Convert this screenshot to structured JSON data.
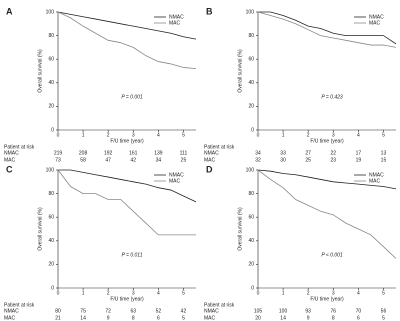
{
  "chart_data": [
    {
      "type": "line",
      "panel_label": "A",
      "ylabel": "Overall survival (%)",
      "xlabel": "F/U time (year)",
      "annotation": "P = 0.001",
      "x": [
        0,
        0.5,
        1,
        1.5,
        2,
        2.5,
        3,
        3.5,
        4,
        4.5,
        5,
        5.5
      ],
      "series": [
        {
          "name": "NMAC",
          "color": "#222222",
          "values": [
            100,
            98,
            96,
            94,
            92,
            90,
            88,
            86,
            84,
            82,
            79,
            77
          ]
        },
        {
          "name": "MAC",
          "color": "#888888",
          "values": [
            100,
            95,
            88,
            82,
            76,
            74,
            70,
            63,
            58,
            56,
            53,
            52
          ]
        }
      ],
      "xlim": [
        0,
        5.5
      ],
      "ylim": [
        0,
        100
      ],
      "xticks": [
        0,
        1,
        2,
        3,
        4,
        5
      ],
      "yticks": [
        0,
        20,
        40,
        60,
        80,
        100
      ],
      "risk_table": {
        "title": "Patient at risk",
        "rows": [
          {
            "name": "NMAC",
            "values": [
              219,
              208,
              192,
              161,
              139,
              111
            ]
          },
          {
            "name": "MAC",
            "values": [
              73,
              58,
              47,
              42,
              34,
              25
            ]
          }
        ]
      }
    },
    {
      "type": "line",
      "panel_label": "B",
      "ylabel": "Overall survival (%)",
      "xlabel": "F/U time (year)",
      "annotation": "P = 0.423",
      "x": [
        0,
        0.5,
        1,
        1.5,
        2,
        2.5,
        3,
        3.5,
        4,
        4.5,
        5,
        5.5
      ],
      "series": [
        {
          "name": "NMAC",
          "color": "#222222",
          "values": [
            100,
            100,
            97,
            93,
            88,
            86,
            82,
            80,
            80,
            80,
            80,
            73
          ]
        },
        {
          "name": "MAC",
          "color": "#888888",
          "values": [
            100,
            97,
            94,
            90,
            85,
            80,
            78,
            76,
            74,
            72,
            72,
            70
          ]
        }
      ],
      "xlim": [
        0,
        5.5
      ],
      "ylim": [
        0,
        100
      ],
      "xticks": [
        0,
        1,
        2,
        3,
        4,
        5
      ],
      "yticks": [
        0,
        20,
        40,
        60,
        80,
        100
      ],
      "risk_table": {
        "title": "Patient at risk",
        "rows": [
          {
            "name": "NMAC",
            "values": [
              34,
              33,
              27,
              22,
              17,
              13
            ]
          },
          {
            "name": "MAC",
            "values": [
              32,
              30,
              25,
              23,
              19,
              15
            ]
          }
        ]
      }
    },
    {
      "type": "line",
      "panel_label": "C",
      "ylabel": "Overall survival (%)",
      "xlabel": "F/U time (year)",
      "annotation": "P = 0.011",
      "x": [
        0,
        0.5,
        1,
        1.5,
        2,
        2.5,
        3,
        3.5,
        4,
        4.5,
        5,
        5.5
      ],
      "series": [
        {
          "name": "NMAC",
          "color": "#222222",
          "values": [
            100,
            100,
            98,
            96,
            94,
            92,
            90,
            88,
            85,
            83,
            78,
            73
          ]
        },
        {
          "name": "MAC",
          "color": "#888888",
          "values": [
            100,
            86,
            80,
            80,
            75,
            75,
            65,
            55,
            45,
            45,
            45,
            45
          ]
        }
      ],
      "xlim": [
        0,
        5.5
      ],
      "ylim": [
        0,
        100
      ],
      "xticks": [
        0,
        1,
        2,
        3,
        4,
        5
      ],
      "yticks": [
        0,
        20,
        40,
        60,
        80,
        100
      ],
      "risk_table": {
        "title": "Patient at risk",
        "rows": [
          {
            "name": "NMAC",
            "values": [
              80,
              75,
              72,
              63,
              52,
              42
            ]
          },
          {
            "name": "MAC",
            "values": [
              21,
              14,
              9,
              8,
              6,
              5
            ]
          }
        ]
      }
    },
    {
      "type": "line",
      "panel_label": "D",
      "ylabel": "Overall survival (%)",
      "xlabel": "F/U time (year)",
      "annotation": "P < 0.001",
      "x": [
        0,
        0.5,
        1,
        1.5,
        2,
        2.5,
        3,
        3.5,
        4,
        4.5,
        5,
        5.5
      ],
      "series": [
        {
          "name": "NMAC",
          "color": "#222222",
          "values": [
            100,
            99,
            97,
            96,
            94,
            92,
            90,
            89,
            88,
            87,
            86,
            84
          ]
        },
        {
          "name": "MAC",
          "color": "#888888",
          "values": [
            100,
            92,
            85,
            75,
            70,
            65,
            62,
            55,
            50,
            45,
            35,
            25
          ]
        }
      ],
      "xlim": [
        0,
        5.5
      ],
      "ylim": [
        0,
        100
      ],
      "xticks": [
        0,
        1,
        2,
        3,
        4,
        5
      ],
      "yticks": [
        0,
        20,
        40,
        60,
        80,
        100
      ],
      "risk_table": {
        "title": "Patient at risk",
        "rows": [
          {
            "name": "NMAC",
            "values": [
              105,
              100,
              93,
              76,
              70,
              56
            ]
          },
          {
            "name": "MAC",
            "values": [
              20,
              14,
              9,
              8,
              6,
              5
            ]
          }
        ]
      }
    }
  ]
}
